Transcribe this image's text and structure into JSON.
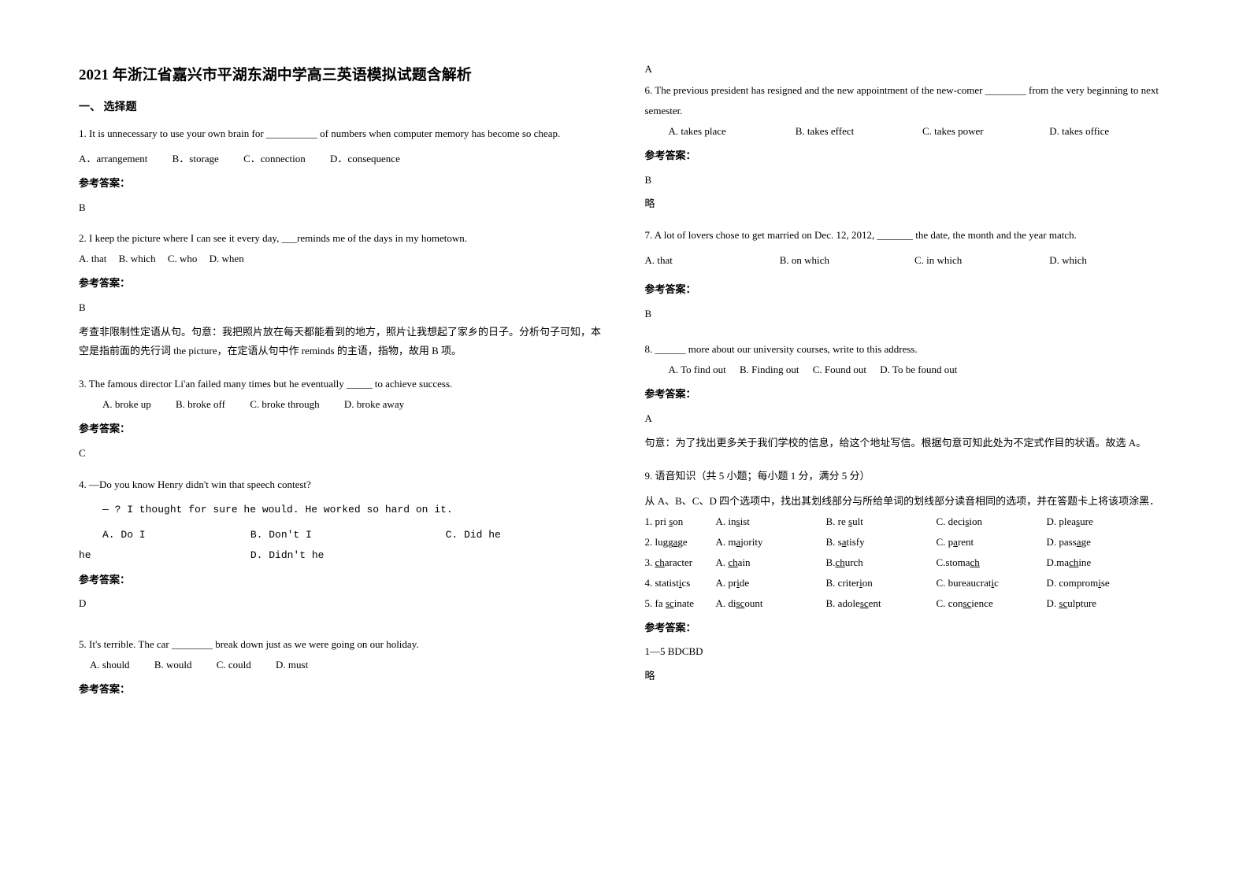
{
  "page": {
    "title": "2021 年浙江省嘉兴市平湖东湖中学高三英语模拟试题含解析",
    "section1": "一、 选择题",
    "answer_label": "参考答案：",
    "omit": "略"
  },
  "q1": {
    "text": "1. It is unnecessary to use your own brain for __________ of numbers when computer memory has become so cheap.",
    "optA": "A．arrangement",
    "optB": "B．storage",
    "optC": "C．connection",
    "optD": "D．consequence",
    "answer": "B"
  },
  "q2": {
    "text": "2. I keep the picture where I can see it every day, ___reminds me of the days in my hometown.",
    "optA": "A. that",
    "optB": "B. which",
    "optC": "C. who",
    "optD": "D. when",
    "answer": "B",
    "explain": "考查非限制性定语从句。句意：我把照片放在每天都能看到的地方，照片让我想起了家乡的日子。分析句子可知，本空是指前面的先行词 the picture，在定语从句中作 reminds 的主语，指物，故用 B 项。"
  },
  "q3": {
    "text": "3. The famous director Li'an failed many times but he eventually _____ to achieve success.",
    "optA": "A. broke up",
    "optB": "B. broke off",
    "optC": "C. broke through",
    "optD": "D. broke away",
    "answer": "C"
  },
  "q4": {
    "text1": "4. —Do you know Henry didn't win that speech contest?",
    "text2": "—              ? I thought for sure he would. He worked so hard on it.",
    "optA": "A. Do I",
    "optB": "B. Don't I",
    "optC": "C. Did he",
    "optD": "D. Didn't he",
    "answer": "D"
  },
  "q5": {
    "text": "5. It's terrible. The car ________ break down just as we were going on our holiday.",
    "optA": "A. should",
    "optB": "B. would",
    "optC": "C. could",
    "optD": "D. must",
    "answer": "A"
  },
  "q6": {
    "text": "6. The previous president has resigned and the new appointment of the new-comer ________ from the very beginning to next semester.",
    "optA": "A. takes place",
    "optB": "B. takes effect",
    "optC": "C. takes power",
    "optD": "D. takes office",
    "answer": "B"
  },
  "q7": {
    "text": "7. A lot of lovers chose to get married on Dec. 12, 2012, _______ the date, the month and the year match.",
    "optA": "A. that",
    "optB": "B. on which",
    "optC": "C. in which",
    "optD": "D. which",
    "answer": "B"
  },
  "q8": {
    "text": "8. ______ more about our university courses, write to this address.",
    "optA": "A. To find out",
    "optB": "B. Finding out",
    "optC": "C. Found out",
    "optD": "D. To be found out",
    "answer": "A",
    "explain": "句意：为了找出更多关于我们学校的信息，给这个地址写信。根据句意可知此处为不定式作目的状语。故选 A。"
  },
  "q9": {
    "header": "9. 语音知识（共 5 小题；每小题 1 分，满分 5 分）",
    "instruction": "从 A、B、C、D 四个选项中，找出其划线部分与所给单词的划线部分读音相同的选项，并在答题卡上将该项涂黑．",
    "answer": "1—5 BDCBD",
    "rows": [
      {
        "n": "1.",
        "w_pre": "pri ",
        "w_u": "s",
        "w_post": "on",
        "A": "A. in",
        "Au": "s",
        "Ap": "ist",
        "B": "B. re ",
        "Bu": "s",
        "Bp": "ult",
        "C": "C. deci",
        "Cu": "s",
        "Cp": "ion",
        "D": "D. plea",
        "Du": "s",
        "Dp": "ure"
      },
      {
        "n": "2.",
        "w_pre": "lugg",
        "w_u": "a",
        "w_post": "ge",
        "A": "A. m",
        "Au": "a",
        "Ap": "jority",
        "B": "B. s",
        "Bu": "a",
        "Bp": "tisfy",
        "C": "C. p",
        "Cu": "a",
        "Cp": "rent",
        "D": "D. pass",
        "Du": "a",
        "Dp": "ge"
      },
      {
        "n": "3.",
        "w_pre": "",
        "w_u": "ch",
        "w_post": "aracter",
        "A": "A. ",
        "Au": "ch",
        "Ap": "ain",
        "B": "B.",
        "Bu": "ch",
        "Bp": "urch",
        "C": "C.stoma",
        "Cu": "ch",
        "Cp": "",
        "D": "D.ma",
        "Du": "ch",
        "Dp": "ine"
      },
      {
        "n": "4.",
        "w_pre": "statist",
        "w_u": "i",
        "w_post": "cs",
        "A": "A. pr",
        "Au": "i",
        "Ap": "de",
        "B": "B. criter",
        "Bu": "i",
        "Bp": "on",
        "C": "C. bureaucrat",
        "Cu": "i",
        "Cp": "c",
        "D": "D. comprom",
        "Du": "i",
        "Dp": "se"
      },
      {
        "n": "5.",
        "w_pre": "fa ",
        "w_u": "sc",
        "w_post": "inate",
        "A": "A. di",
        "Au": "sc",
        "Ap": "ount",
        "B": "B. adole",
        "Bu": "sc",
        "Bp": "ent",
        "C": "C. con",
        "Cu": "sc",
        "Cp": "ience",
        "D": "D. ",
        "Du": "sc",
        "Dp": "ulpture"
      }
    ]
  }
}
